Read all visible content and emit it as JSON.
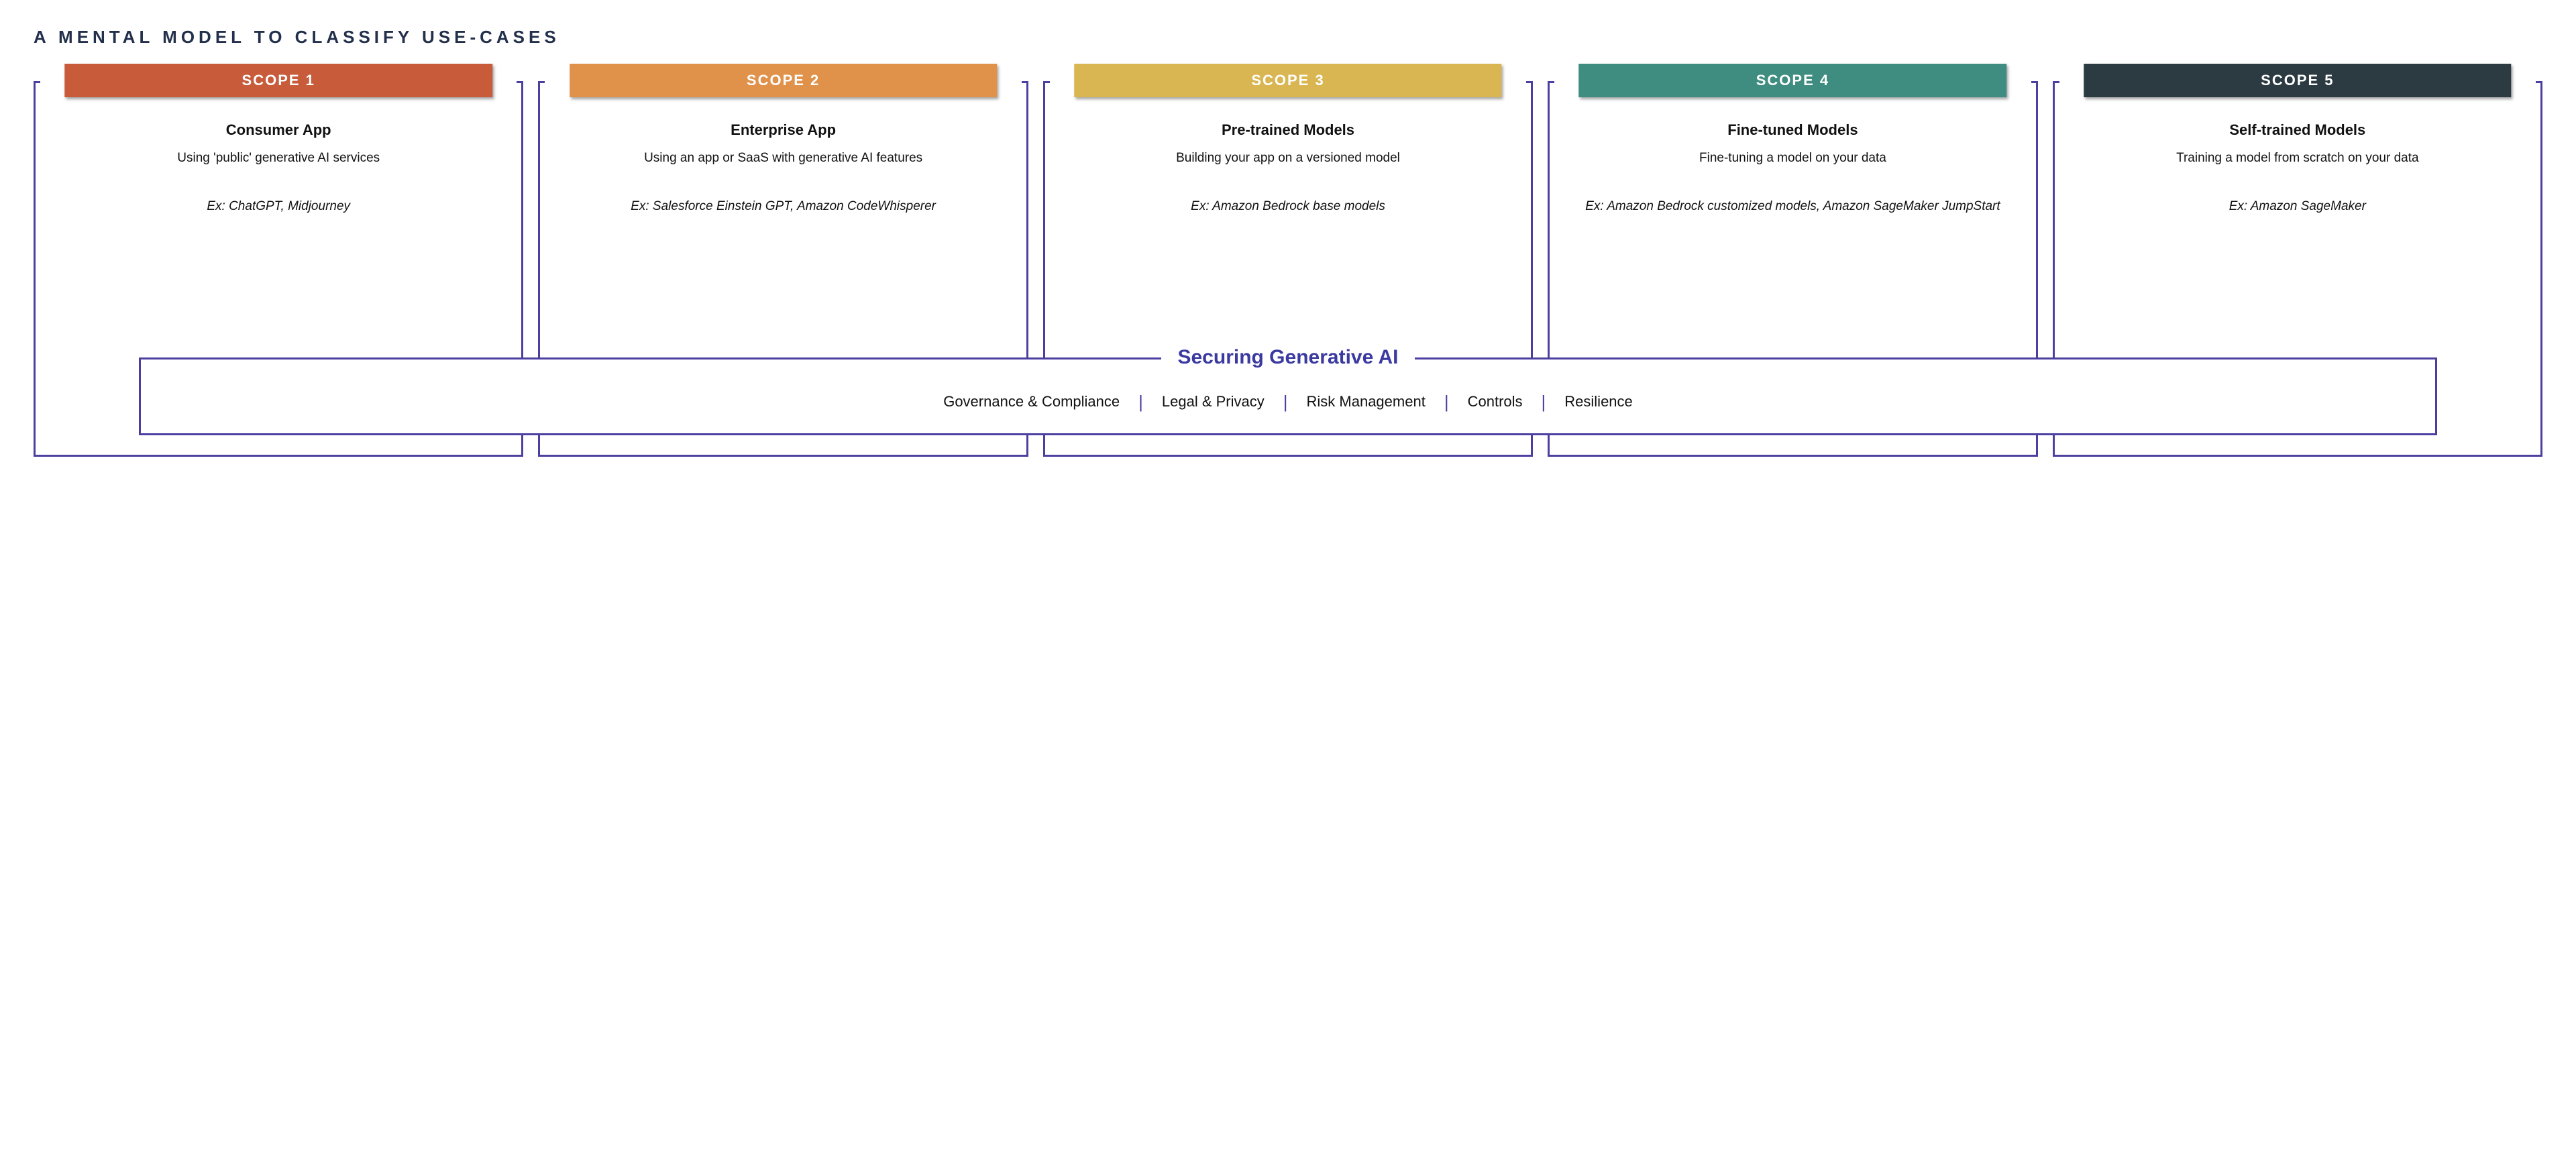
{
  "subtitle": "A MENTAL MODEL TO CLASSIFY USE-CASES",
  "border_color": "#4b3fa0",
  "scopes": [
    {
      "badge": "SCOPE 1",
      "badge_color": "#c75b3a",
      "title": "Consumer App",
      "description": "Using 'public' generative AI services",
      "example": "Ex: ChatGPT, Midjourney"
    },
    {
      "badge": "SCOPE 2",
      "badge_color": "#e0914a",
      "title": "Enterprise App",
      "description": "Using an app or SaaS with generative AI features",
      "example": "Ex: Salesforce Einstein GPT, Amazon CodeWhisperer"
    },
    {
      "badge": "SCOPE 3",
      "badge_color": "#d9b651",
      "title": "Pre-trained Models",
      "description": "Building your app on a versioned model",
      "example": "Ex: Amazon Bedrock base models"
    },
    {
      "badge": "SCOPE 4",
      "badge_color": "#3f8d80",
      "title": "Fine-tuned Models",
      "description": "Fine-tuning a model on your data",
      "example": "Ex: Amazon Bedrock customized models, Amazon SageMaker JumpStart"
    },
    {
      "badge": "SCOPE 5",
      "badge_color": "#2c3a42",
      "title": "Self-trained Models",
      "description": "Training a model from scratch on your data",
      "example": "Ex: Amazon SageMaker"
    }
  ],
  "securing": {
    "title": "Securing Generative AI",
    "pillars": [
      "Governance & Compliance",
      "Legal & Privacy",
      "Risk Management",
      "Controls",
      "Resilience"
    ]
  }
}
